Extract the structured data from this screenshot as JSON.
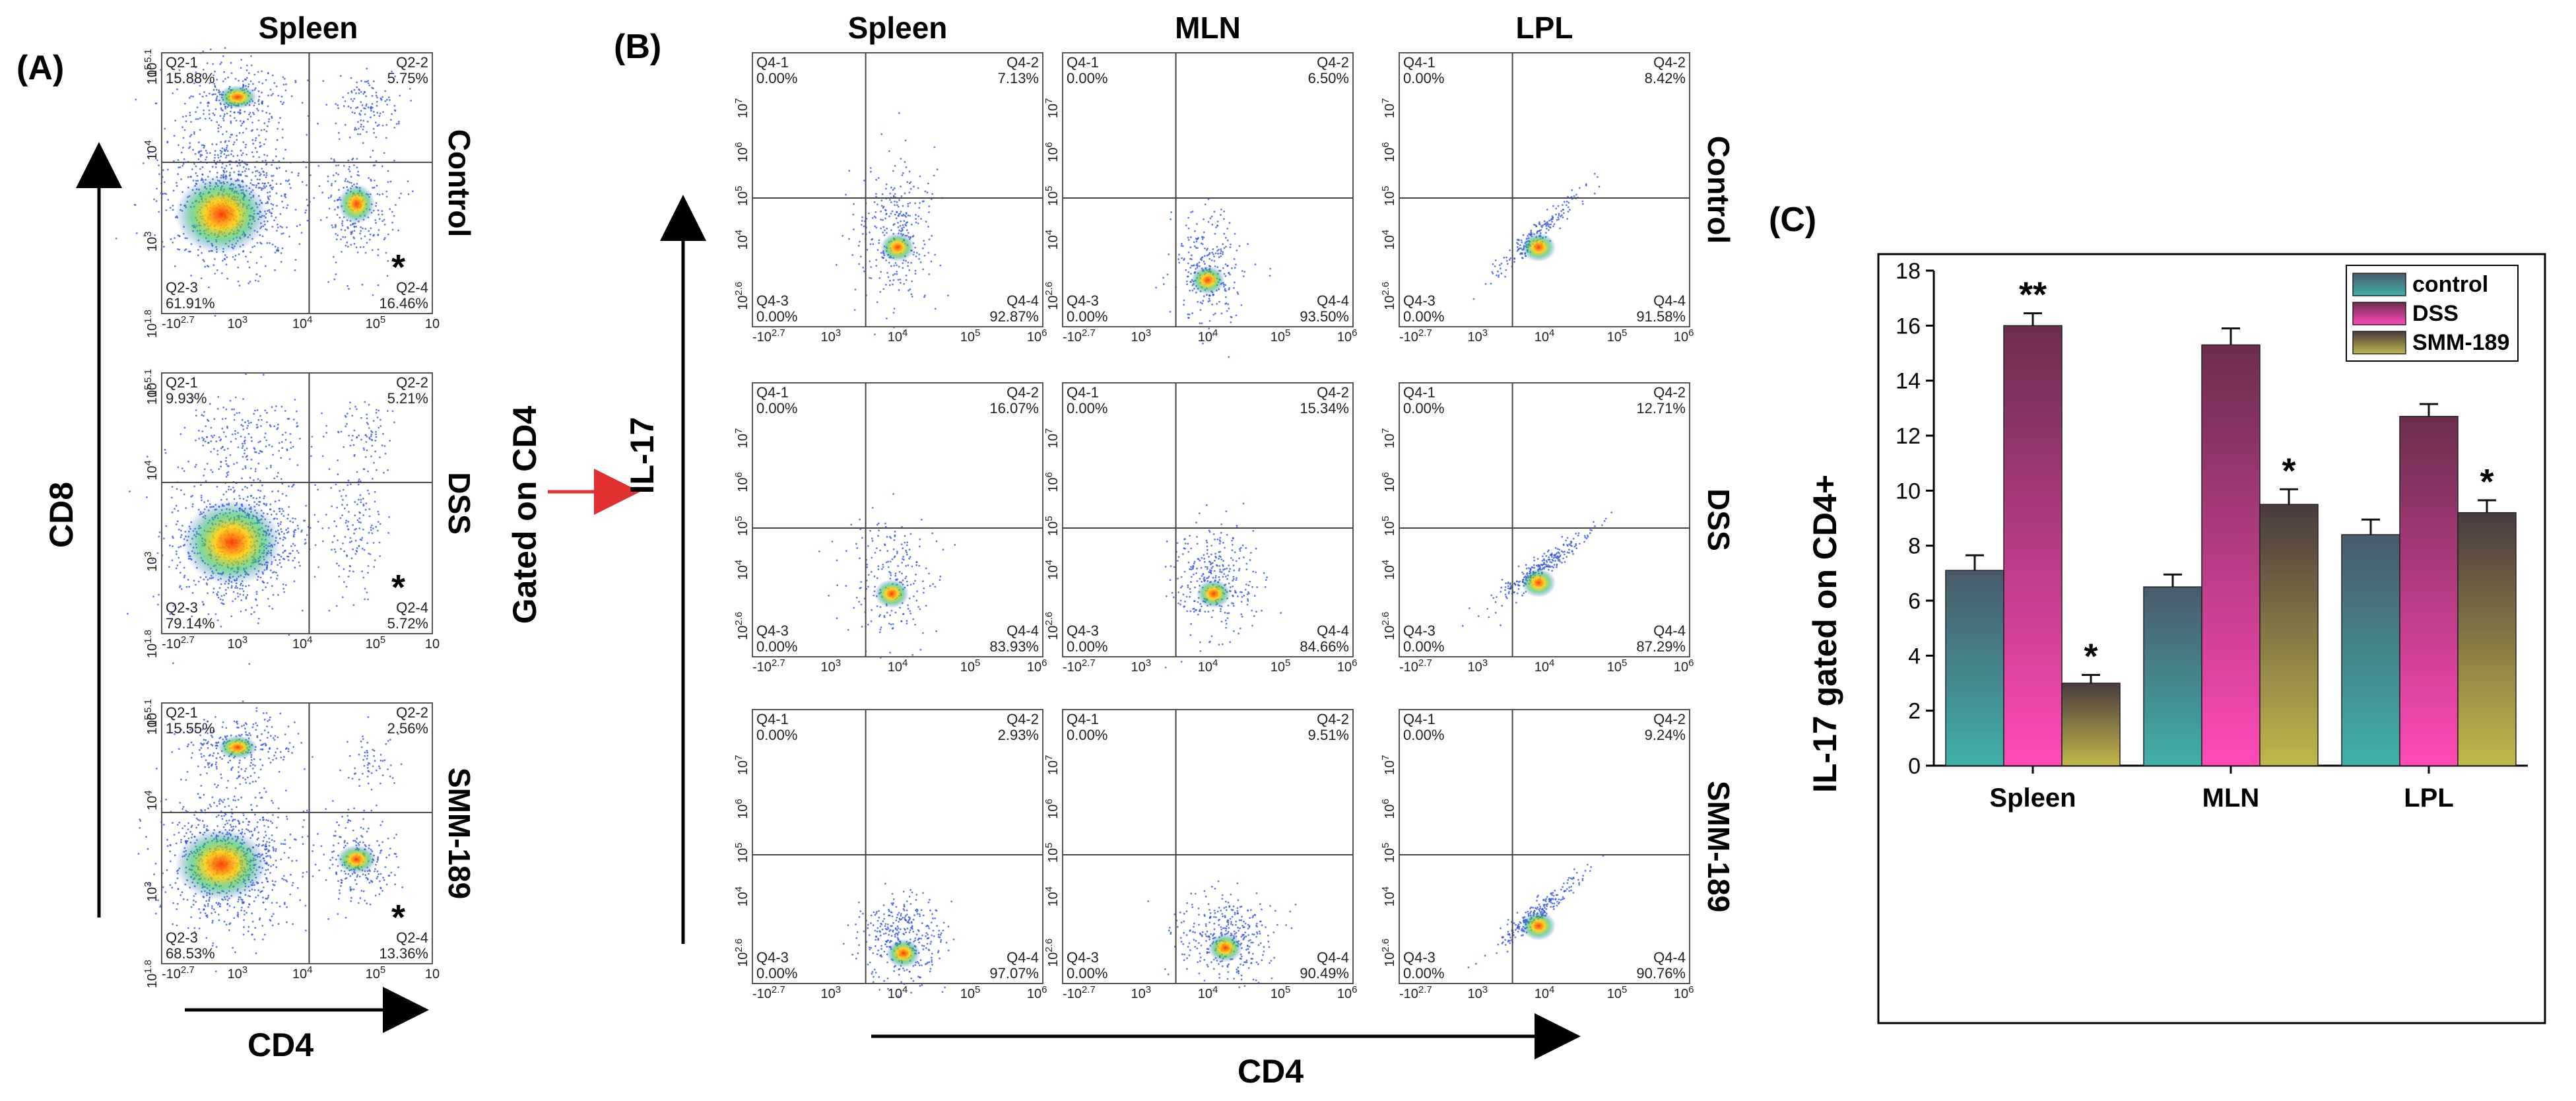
{
  "panel_a": {
    "label": "(A)",
    "column_title": "Spleen",
    "y_axis_title": "CD8",
    "x_axis_title": "CD4",
    "x_ticks": [
      "-10^2.7",
      "10^3",
      "10^4",
      "10^5",
      "10"
    ],
    "y_ticks": [
      "10^5.1",
      "10^5",
      "10^4",
      "10^3",
      "10^1.8"
    ],
    "rows": [
      {
        "label": "Control",
        "q1": "Q2-1\n15.88%",
        "q2": "Q2-2\n5.75%",
        "q3": "Q2-3\n61.91%",
        "q4": "Q2-4\n16.46%",
        "star": "*"
      },
      {
        "label": "DSS",
        "q1": "Q2-1\n9.93%",
        "q2": "Q2-2\n5.21%",
        "q3": "Q2-3\n79.14%",
        "q4": "Q2-4\n5.72%",
        "star": "*"
      },
      {
        "label": "SMM-189",
        "q1": "Q2-1\n15.55%",
        "q2": "Q2-2\n2.56%",
        "q3": "Q2-3\n68.53%",
        "q4": "Q2-4\n13.36%",
        "star": "*"
      }
    ]
  },
  "panel_b": {
    "label": "(B)",
    "gate_label": "Gated on CD4",
    "y_axis_title": "IL-17",
    "x_axis_title": "CD4",
    "columns": [
      "Spleen",
      "MLN",
      "LPL"
    ],
    "row_labels": [
      "Control",
      "DSS",
      "SMM-189"
    ],
    "x_ticks": [
      "-10^2.7",
      "10^3",
      "10^4",
      "10^5",
      "10^6"
    ],
    "y_ticks": [
      "10^7",
      "10^6",
      "10^5",
      "10^4",
      "10^2.6"
    ],
    "cells": [
      [
        {
          "q1": "Q4-1\n0.00%",
          "q2": "Q4-2\n7.13%",
          "q3": "Q4-3\n0.00%",
          "q4": "Q4-4\n92.87%"
        },
        {
          "q1": "Q4-1\n0.00%",
          "q2": "Q4-2\n6.50%",
          "q3": "Q4-3\n0.00%",
          "q4": "Q4-4\n93.50%"
        },
        {
          "q1": "Q4-1\n0.00%",
          "q2": "Q4-2\n8.42%",
          "q3": "Q4-3\n0.00%",
          "q4": "Q4-4\n91.58%"
        }
      ],
      [
        {
          "q1": "Q4-1\n0.00%",
          "q2": "Q4-2\n16.07%",
          "q3": "Q4-3\n0.00%",
          "q4": "Q4-4\n83.93%"
        },
        {
          "q1": "Q4-1\n0.00%",
          "q2": "Q4-2\n15.34%",
          "q3": "Q4-3\n0.00%",
          "q4": "Q4-4\n84.66%"
        },
        {
          "q1": "Q4-1\n0.00%",
          "q2": "Q4-2\n12.71%",
          "q3": "Q4-3\n0.00%",
          "q4": "Q4-4\n87.29%"
        }
      ],
      [
        {
          "q1": "Q4-1\n0.00%",
          "q2": "Q4-2\n2.93%",
          "q3": "Q4-3\n0.00%",
          "q4": "Q4-4\n97.07%"
        },
        {
          "q1": "Q4-1\n0.00%",
          "q2": "Q4-2\n9.51%",
          "q3": "Q4-3\n0.00%",
          "q4": "Q4-4\n90.49%"
        },
        {
          "q1": "Q4-1\n0.00%",
          "q2": "Q4-2\n9.24%",
          "q3": "Q4-3\n0.00%",
          "q4": "Q4-4\n90.76%"
        }
      ]
    ]
  },
  "panel_c": {
    "label": "(C)"
  },
  "colors": {
    "control": "#3f9e9c",
    "dss": "#f040a8",
    "smm": "#a8a042",
    "arrow_red": "#e03030",
    "dot_blue": "#2f4fd8"
  },
  "chart_data": {
    "type": "bar",
    "title": "",
    "xlabel": "",
    "ylabel": "IL-17 gated on CD4+",
    "categories": [
      "Spleen",
      "MLN",
      "LPL"
    ],
    "series": [
      {
        "name": "control",
        "values": [
          7.1,
          6.5,
          8.4
        ],
        "errors": [
          0.55,
          0.45,
          0.55
        ],
        "annotations": [
          "",
          "",
          ""
        ]
      },
      {
        "name": "DSS",
        "values": [
          16.0,
          15.3,
          12.7
        ],
        "errors": [
          0.45,
          0.6,
          0.45
        ],
        "annotations": [
          "**",
          "",
          ""
        ]
      },
      {
        "name": "SMM-189",
        "values": [
          3.0,
          9.5,
          9.2
        ],
        "errors": [
          0.3,
          0.55,
          0.45
        ],
        "annotations": [
          "*",
          "*",
          "*"
        ]
      }
    ],
    "ylim": [
      0,
      18
    ],
    "yticks": [
      0,
      2,
      4,
      6,
      8,
      10,
      12,
      14,
      16,
      18
    ],
    "legend": "top-right",
    "legend_labels": [
      "control",
      "DSS",
      "SMM-189"
    ]
  }
}
